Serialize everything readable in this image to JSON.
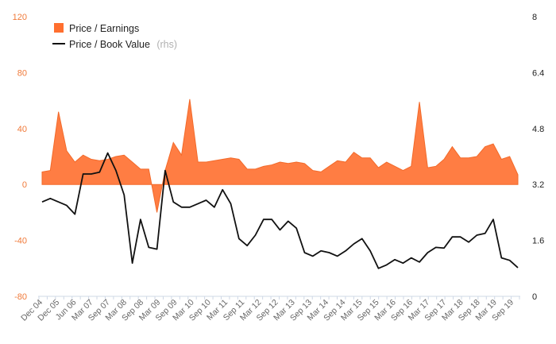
{
  "chart_data": {
    "type": "area",
    "colors": {
      "pe": "#ff6f2f",
      "pe_line": "#f26a2a",
      "pb": "#111111",
      "axis": "#cfd8e6",
      "left_ticks": "#f07a3a"
    },
    "left_axis": {
      "ylim": [
        -80,
        120
      ],
      "ticks": [
        120,
        80,
        40,
        0,
        -40,
        -80
      ],
      "tick_labels": [
        "120",
        "80",
        "40",
        "0",
        "-40",
        "-80"
      ]
    },
    "right_axis": {
      "ylim": [
        0,
        8
      ],
      "ticks": [
        8,
        6.4,
        4.8,
        3.2,
        1.6,
        0
      ],
      "tick_labels": [
        "8",
        "6.4",
        "4.8",
        "3.2",
        "1.6",
        "0"
      ]
    },
    "x_tick_labels": [
      "Dec 04",
      "Dec 05",
      "Jun 06",
      "Mar 07",
      "Sep 07",
      "Mar 08",
      "Sep 08",
      "Mar 09",
      "Sep 09",
      "Mar 10",
      "Sep 10",
      "Mar 11",
      "Sep 11",
      "Mar 12",
      "Sep 12",
      "Mar 13",
      "Sep 13",
      "Mar 14",
      "Sep 14",
      "Mar 15",
      "Sep 15",
      "Mar 16",
      "Sep 16",
      "Mar 17",
      "Sep 17",
      "Mar 18",
      "Sep 18",
      "Mar 19",
      "Sep 19"
    ],
    "legend": {
      "pe_label": "Price / Earnings",
      "pb_label": "Price / Book Value",
      "pb_note": "(rhs)"
    },
    "series": [
      {
        "name": "Price / Earnings",
        "axis": "left",
        "values": [
          9,
          10,
          52,
          24,
          16,
          21,
          18,
          17,
          18,
          20,
          21,
          16,
          11,
          11,
          -20,
          10,
          30,
          21,
          61,
          16,
          16,
          17,
          18,
          19,
          18,
          11,
          11,
          13,
          14,
          16,
          15,
          16,
          15,
          10,
          9,
          13,
          17,
          16,
          23,
          19,
          19,
          12,
          16,
          13,
          10,
          13,
          59,
          12,
          13,
          18,
          27,
          19,
          19,
          20,
          27,
          29,
          18,
          20,
          7
        ]
      },
      {
        "name": "Price / Book Value",
        "axis": "right",
        "values": [
          2.7,
          2.8,
          2.7,
          2.6,
          2.35,
          3.5,
          3.5,
          3.55,
          4.1,
          3.6,
          2.9,
          0.95,
          2.2,
          1.4,
          1.35,
          3.6,
          2.7,
          2.55,
          2.55,
          2.65,
          2.75,
          2.55,
          3.05,
          2.65,
          1.65,
          1.45,
          1.75,
          2.2,
          2.2,
          1.9,
          2.15,
          1.95,
          1.25,
          1.15,
          1.3,
          1.25,
          1.15,
          1.3,
          1.5,
          1.65,
          1.3,
          0.8,
          0.9,
          1.05,
          0.95,
          1.1,
          0.98,
          1.25,
          1.4,
          1.38,
          1.7,
          1.7,
          1.55,
          1.75,
          1.8,
          2.2,
          1.1,
          1.03,
          0.82
        ]
      }
    ]
  }
}
